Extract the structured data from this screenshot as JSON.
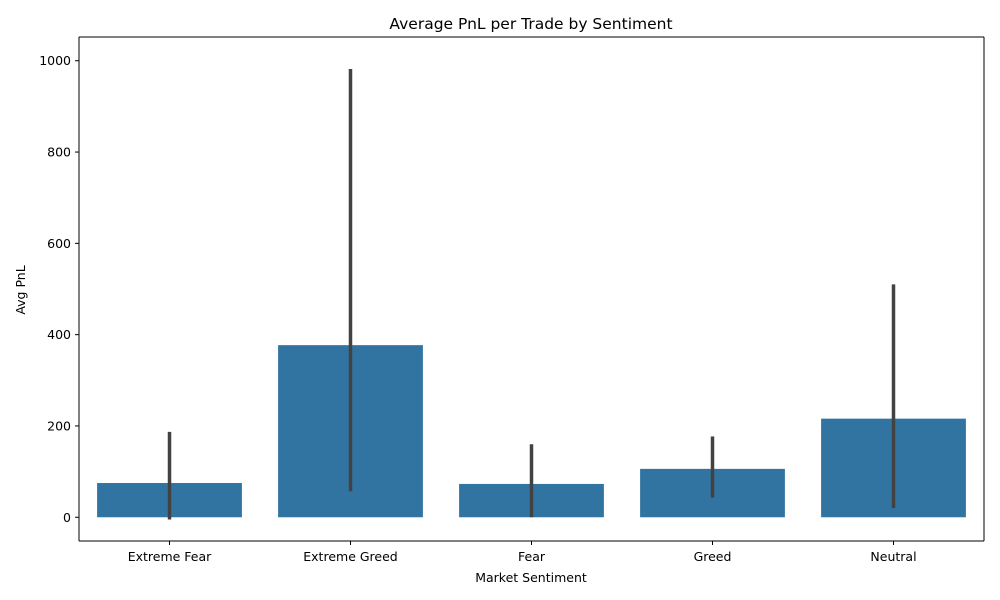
{
  "chart_data": {
    "type": "bar",
    "title": "Average PnL per Trade by Sentiment",
    "xlabel": "Market Sentiment",
    "ylabel": "Avg PnL",
    "categories": [
      "Extreme Fear",
      "Extreme Greed",
      "Fear",
      "Greed",
      "Neutral"
    ],
    "values": [
      75,
      377,
      73,
      106,
      216
    ],
    "error_bars": [
      {
        "low": -5,
        "high": 187
      },
      {
        "low": 57,
        "high": 982
      },
      {
        "low": 0,
        "high": 160
      },
      {
        "low": 43,
        "high": 177
      },
      {
        "low": 20,
        "high": 510
      }
    ],
    "ylim": [
      -52,
      1052
    ],
    "yticks": [
      0,
      200,
      400,
      600,
      800,
      1000
    ],
    "bar_color": "#3274a1",
    "error_color": "#424242",
    "grid": false,
    "legend": "none"
  }
}
